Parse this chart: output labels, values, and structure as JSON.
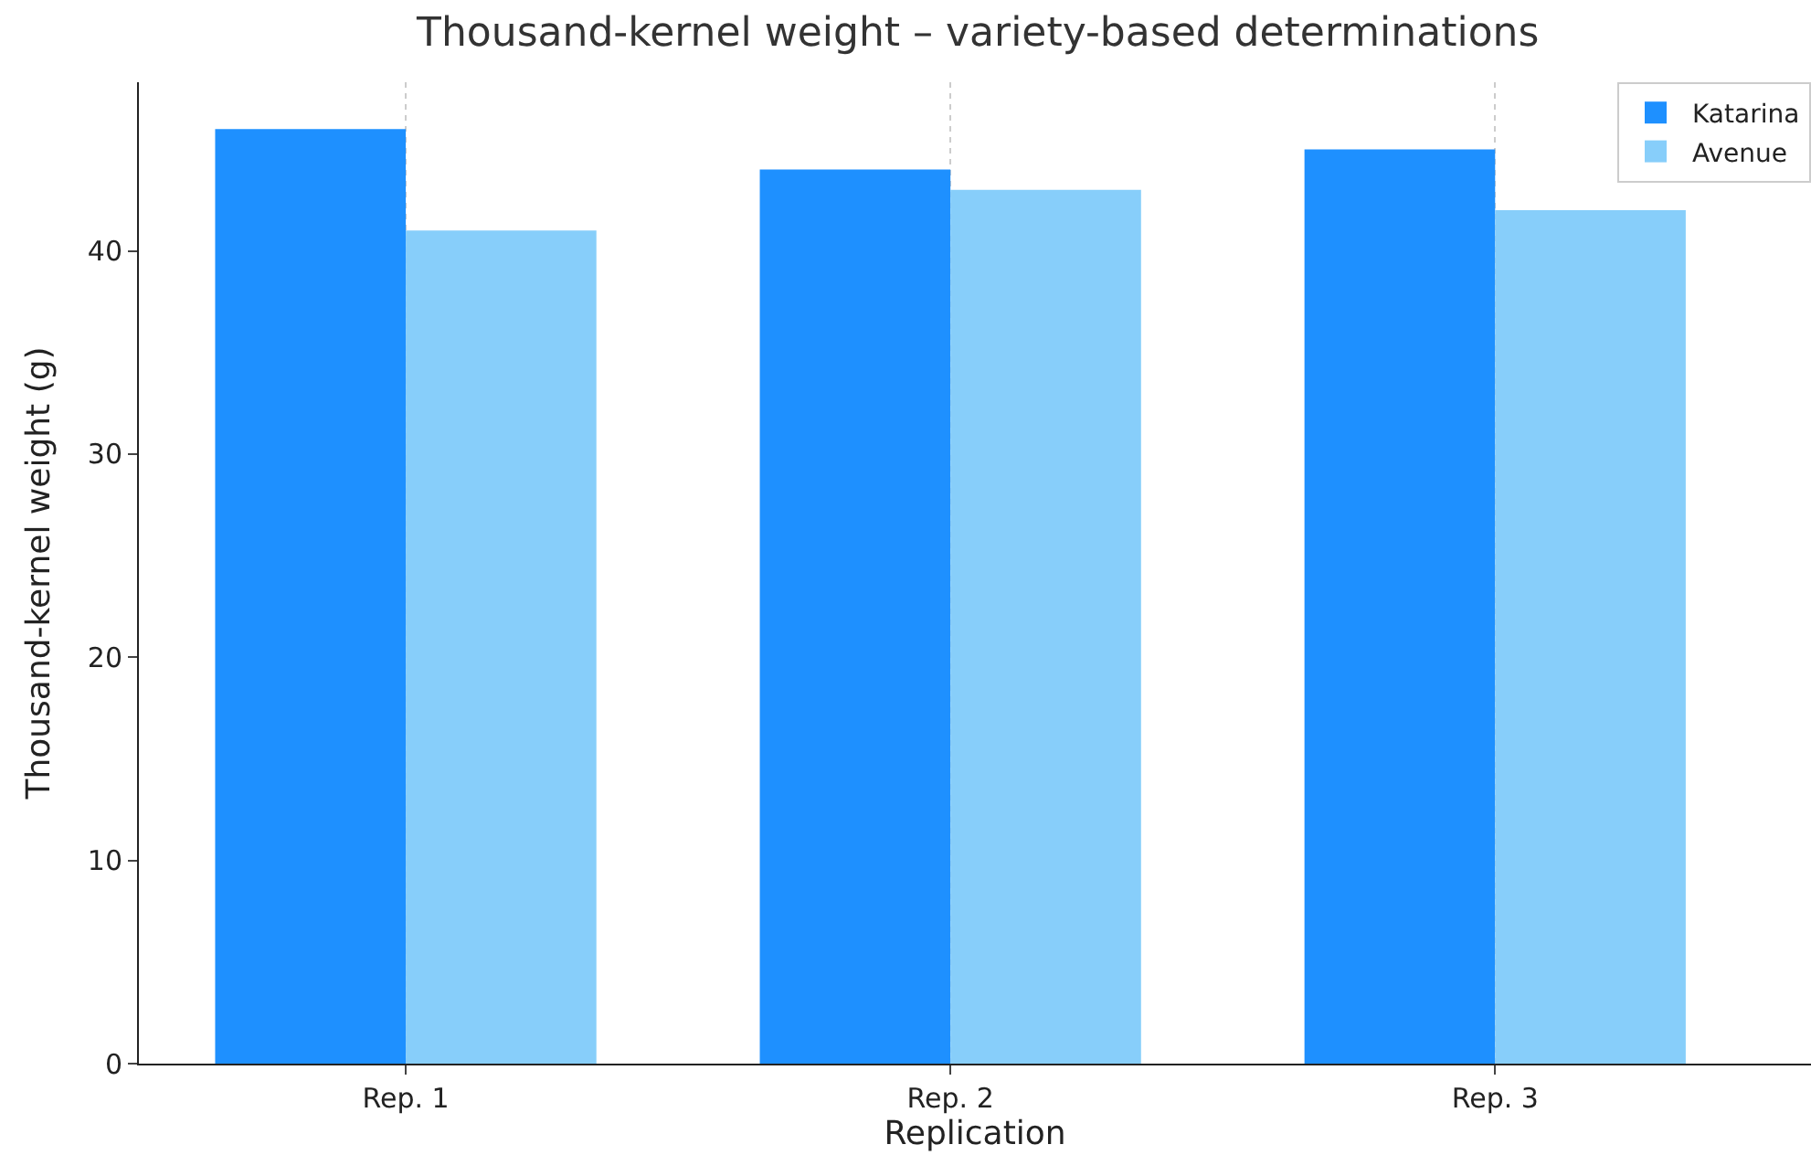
{
  "chart_data": {
    "type": "bar",
    "title": "Thousand-kernel weight – variety-based determinations",
    "xlabel": "Replication",
    "ylabel": "Thousand-kernel weight (g)",
    "categories": [
      "Rep. 1",
      "Rep. 2",
      "Rep. 3"
    ],
    "series": [
      {
        "name": "Katarina",
        "color": "#1e90ff",
        "values": [
          46,
          44,
          45
        ]
      },
      {
        "name": "Avenue",
        "color": "#87cefa",
        "values": [
          41,
          43,
          42
        ]
      }
    ],
    "ylim": [
      0,
      48.3
    ],
    "yticks": [
      0,
      10,
      20,
      30,
      40
    ],
    "grid": "x",
    "legend": "top right"
  }
}
